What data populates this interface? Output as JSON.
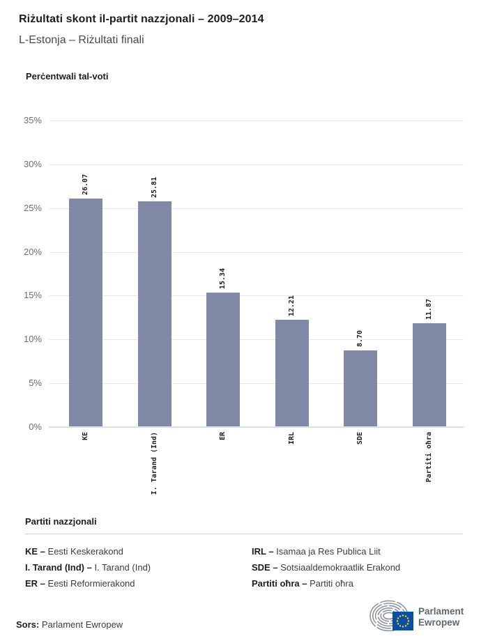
{
  "header": {
    "title": "Riżultati skont il-partit nazzjonali – 2009–2014",
    "subtitle": "L-Estonja – Riżultati finali"
  },
  "chart_data": {
    "type": "bar",
    "title": "Riżultati skont il-partit nazzjonali – 2009–2014",
    "subtitle": "L-Estonja – Riżultati finali",
    "ylabel": "Perċentwali tal-voti",
    "xlabel": "",
    "categories": [
      "KE",
      "I. Tarand (Ind)",
      "ER",
      "IRL",
      "SDE",
      "Partiti oħra"
    ],
    "values": [
      26.07,
      25.81,
      15.34,
      12.21,
      8.7,
      11.87
    ],
    "value_labels": [
      "26.07",
      "25.81",
      "15.34",
      "12.21",
      "8.70",
      "11.87"
    ],
    "ylim": [
      0,
      35
    ],
    "ytick_step": 5,
    "ytick_suffix": "%",
    "grid": "horizontal",
    "bar_color": "#8089a5"
  },
  "legend": {
    "title": "Partiti nazzjonali",
    "columns": [
      [
        {
          "term": "KE –",
          "desc": "Eesti Keskerakond"
        },
        {
          "term": "I. Tarand (Ind) –",
          "desc": "I. Tarand (Ind)"
        },
        {
          "term": "ER –",
          "desc": "Eesti Reformierakond"
        }
      ],
      [
        {
          "term": "IRL –",
          "desc": "Isamaa ja Res Publica Liit"
        },
        {
          "term": "SDE –",
          "desc": "Sotsiaaldemokraatlik Erakond"
        },
        {
          "term": "Partiti oħra –",
          "desc": "Partiti oħra"
        }
      ]
    ]
  },
  "footer": {
    "source_label": "Sors:",
    "source_value": "Parlament Ewropew",
    "logo_line1": "Parlament",
    "logo_line2": "Ewropew"
  },
  "colors": {
    "bar": "#8089a5",
    "gridline": "#e7e7e7",
    "axis_line": "#dcdfe9",
    "tick_text": "#6f6f6f",
    "title_text": "#1d1d1b",
    "subtitle_text": "#4a4a49",
    "flag_blue": "#0b4ea2",
    "star_yellow": "#ffd617",
    "hemicycle_gray": "#8d949b",
    "logo_text": "#5d6770"
  }
}
